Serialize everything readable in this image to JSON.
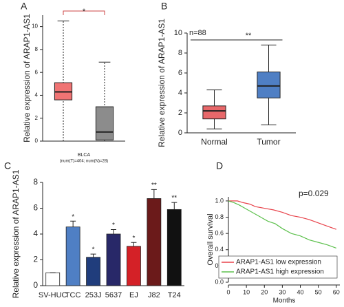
{
  "chart_data": [
    {
      "type": "box",
      "panel": "A",
      "ylabel": "Relative expression of ARAP1-AS1",
      "xlabel": "BLCA",
      "note": "(num(T)=404; num(N)=28)",
      "significance": "*",
      "categories": [
        null,
        null
      ],
      "min": [
        0,
        0
      ],
      "q1": [
        3.6,
        0.1
      ],
      "median": [
        4.3,
        0.8
      ],
      "q3": [
        5.1,
        3.0
      ],
      "max": [
        10.5,
        6.9
      ],
      "colors": [
        "#f07474",
        "#8c8c8c"
      ],
      "ylim": [
        0,
        11
      ],
      "yticks": [
        0,
        2,
        4,
        6,
        8,
        10
      ]
    },
    {
      "type": "box",
      "panel": "B",
      "ylabel": "Relative expression of ARAP1-AS1",
      "sample_size": "n=88",
      "significance": "**",
      "categories": [
        "Normal",
        "Tumor"
      ],
      "min": [
        0.4,
        0.8
      ],
      "q1": [
        1.4,
        3.5
      ],
      "median": [
        2.2,
        4.7
      ],
      "q3": [
        2.7,
        6.1
      ],
      "max": [
        4.3,
        8.8
      ],
      "colors": [
        "#e8686a",
        "#4f7fc4"
      ],
      "ylim": [
        0,
        10
      ],
      "yticks": [
        0,
        2,
        4,
        6,
        8,
        10
      ]
    },
    {
      "type": "bar",
      "panel": "C",
      "ylabel": "Relative expression of ARAP1-AS1",
      "categories": [
        "SV-HUC",
        "TCC",
        "253J",
        "5637",
        "EJ",
        "J82",
        "T24"
      ],
      "values": [
        1,
        4.55,
        2.2,
        4.0,
        3.05,
        6.75,
        5.9
      ],
      "errors": [
        0,
        0.45,
        0.25,
        0.35,
        0.3,
        0.7,
        0.55
      ],
      "value_annotations": [
        null,
        "*",
        "*",
        "*",
        "*",
        "**",
        "**"
      ],
      "colors": [
        "#ffffff",
        "#4f7fc4",
        "#203d7c",
        "#282868",
        "#d42127",
        "#6b1a1a",
        "#111111"
      ],
      "ylim": [
        0,
        8
      ],
      "yticks": [
        0,
        2,
        4,
        6,
        8
      ]
    },
    {
      "type": "line",
      "panel": "D",
      "ylabel": "Overall survival",
      "xlabel": "Months",
      "p_value": "p=0.029",
      "series": [
        {
          "name": "ARAP1-AS1 low expression",
          "color": "#e8424a",
          "x": [
            0,
            5,
            8,
            12,
            15,
            20,
            25,
            30,
            35,
            40,
            45,
            50,
            55,
            60
          ],
          "values": [
            1,
            1,
            0.98,
            0.96,
            0.93,
            0.91,
            0.89,
            0.86,
            0.82,
            0.8,
            0.77,
            0.73,
            0.69,
            0.65
          ]
        },
        {
          "name": "ARAP1-AS1 high expression",
          "color": "#5cc04c",
          "x": [
            0,
            3,
            6,
            10,
            14,
            18,
            22,
            26,
            30,
            35,
            40,
            45,
            50,
            55,
            60
          ],
          "values": [
            1,
            0.98,
            0.95,
            0.9,
            0.85,
            0.8,
            0.75,
            0.72,
            0.66,
            0.6,
            0.57,
            0.52,
            0.49,
            0.46,
            0.42
          ]
        }
      ],
      "xlim": [
        0,
        62
      ],
      "xticks": [
        0,
        10,
        20,
        30,
        40,
        50,
        60
      ],
      "ylim": [
        0,
        1.05
      ],
      "yticks": [
        {
          "value": 0,
          "label": "0.0"
        },
        0.2,
        0.4,
        0.6,
        0.8,
        {
          "value": 1,
          "label": "1.0"
        }
      ]
    }
  ]
}
